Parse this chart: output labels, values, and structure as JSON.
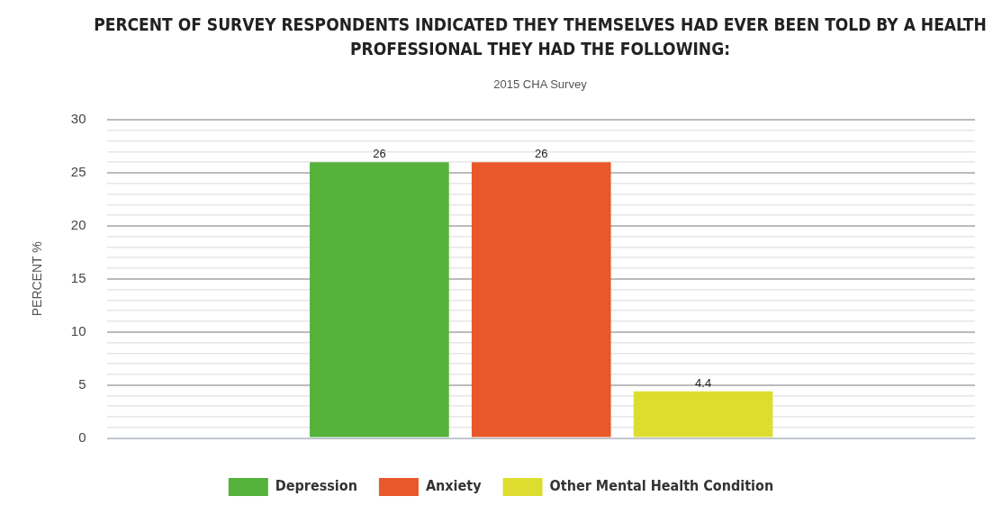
{
  "chart_data": {
    "type": "bar",
    "title": "PERCENT OF SURVEY RESPONDENTS INDICATED THEY THEMSELVES HAD EVER BEEN TOLD BY A HEALTH PROFESSIONAL THEY HAD THE FOLLOWING:",
    "subtitle": "2015 CHA Survey",
    "ylabel": "PERCENT %",
    "categories": [
      null
    ],
    "series": [
      {
        "name": "Depression",
        "color": "#55b23b",
        "values": [
          26
        ]
      },
      {
        "name": "Anxiety",
        "color": "#e9582a",
        "values": [
          26
        ]
      },
      {
        "name": "Other Mental Health Condition",
        "color": "#dddd2f",
        "values": [
          4.4
        ]
      }
    ],
    "ylim": [
      0,
      30
    ],
    "yticks": [
      0,
      {
        "value": 1,
        "label": null
      },
      {
        "value": 2,
        "label": null
      },
      {
        "value": 3,
        "label": null
      },
      {
        "value": 4,
        "label": null
      },
      5,
      {
        "value": 6,
        "label": null
      },
      {
        "value": 7,
        "label": null
      },
      {
        "value": 8,
        "label": null
      },
      {
        "value": 9,
        "label": null
      },
      10,
      {
        "value": 11,
        "label": null
      },
      {
        "value": 12,
        "label": null
      },
      {
        "value": 13,
        "label": null
      },
      {
        "value": 14,
        "label": null
      },
      15,
      {
        "value": 16,
        "label": null
      },
      {
        "value": 17,
        "label": null
      },
      {
        "value": 18,
        "label": null
      },
      {
        "value": 19,
        "label": null
      },
      20,
      {
        "value": 21,
        "label": null
      },
      {
        "value": 22,
        "label": null
      },
      {
        "value": 23,
        "label": null
      },
      {
        "value": 24,
        "label": null
      },
      25,
      {
        "value": 26,
        "label": null
      },
      {
        "value": 27,
        "label": null
      },
      {
        "value": 28,
        "label": null
      },
      {
        "value": 29,
        "label": null
      },
      30
    ],
    "grid": "y",
    "data_labels": true,
    "legend": "bottom"
  }
}
